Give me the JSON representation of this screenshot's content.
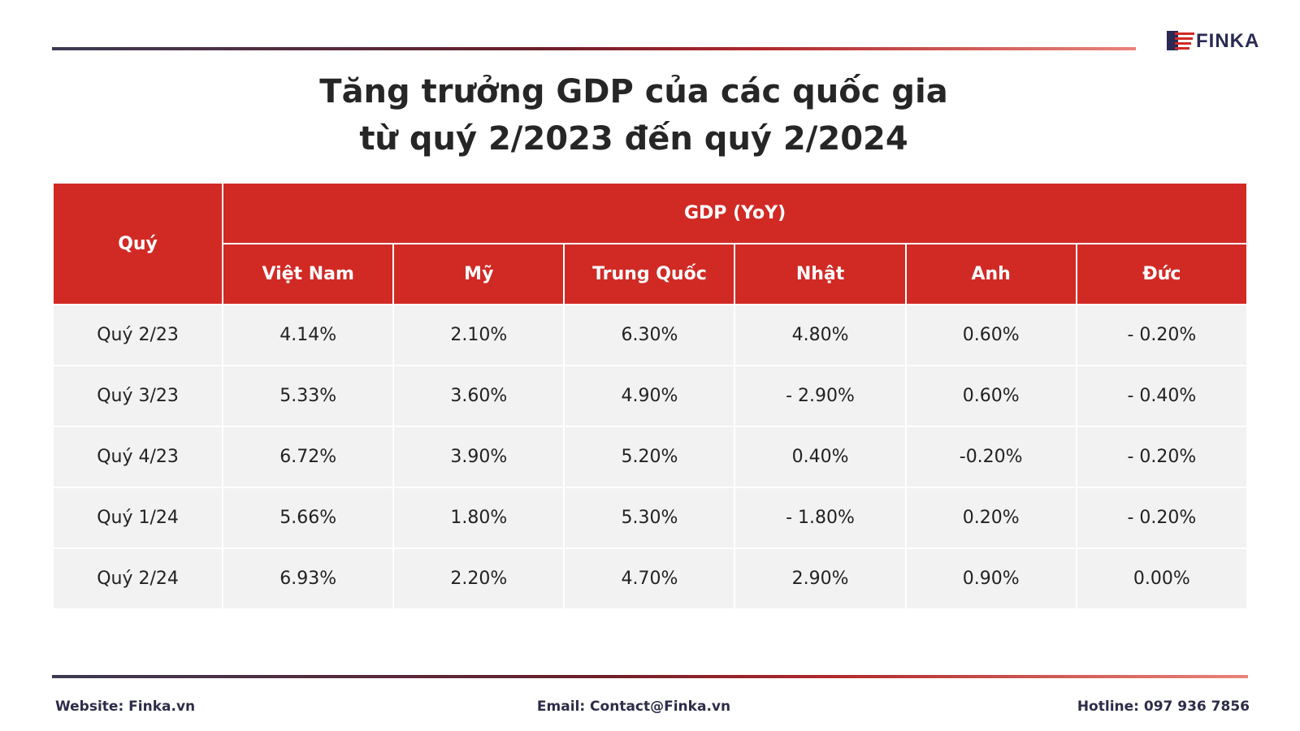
{
  "logo": {
    "text": "FINKA"
  },
  "title": {
    "line1": "Tăng trưởng GDP của các quốc gia",
    "line2": "từ quý 2/2023 đến quý 2/2024"
  },
  "table": {
    "row_header": "Quý",
    "group_header": "GDP (YoY)",
    "columns": [
      "Việt Nam",
      "Mỹ",
      "Trung Quốc",
      "Nhật",
      "Anh",
      "Đức"
    ],
    "rows": [
      {
        "label": "Quý 2/23",
        "values": [
          "4.14%",
          "2.10%",
          "6.30%",
          "4.80%",
          "0.60%",
          "- 0.20%"
        ]
      },
      {
        "label": "Quý 3/23",
        "values": [
          "5.33%",
          "3.60%",
          "4.90%",
          "- 2.90%",
          "0.60%",
          "- 0.40%"
        ]
      },
      {
        "label": "Quý 4/23",
        "values": [
          "6.72%",
          "3.90%",
          "5.20%",
          "0.40%",
          "-0.20%",
          "- 0.20%"
        ]
      },
      {
        "label": "Quý 1/24",
        "values": [
          "5.66%",
          "1.80%",
          "5.30%",
          "- 1.80%",
          "0.20%",
          "- 0.20%"
        ]
      },
      {
        "label": "Quý 2/24",
        "values": [
          "6.93%",
          "2.20%",
          "4.70%",
          "2.90%",
          "0.90%",
          "0.00%"
        ]
      }
    ]
  },
  "footer": {
    "website": "Website: Finka.vn",
    "email": "Email: Contact@Finka.vn",
    "hotline": "Hotline: 097 936 7856"
  },
  "colors": {
    "header_red": "#d12a25",
    "row_gray": "#f2f2f2",
    "navy": "#2a2a55"
  },
  "chart_data": {
    "type": "table",
    "title": "Tăng trưởng GDP của các quốc gia từ quý 2/2023 đến quý 2/2024",
    "columns": [
      "Quý",
      "Việt Nam",
      "Mỹ",
      "Trung Quốc",
      "Nhật",
      "Anh",
      "Đức"
    ],
    "rows": [
      [
        "Quý 2/23",
        4.14,
        2.1,
        6.3,
        4.8,
        0.6,
        -0.2
      ],
      [
        "Quý 3/23",
        5.33,
        3.6,
        4.9,
        -2.9,
        0.6,
        -0.4
      ],
      [
        "Quý 4/23",
        6.72,
        3.9,
        5.2,
        0.4,
        -0.2,
        -0.2
      ],
      [
        "Quý 1/24",
        5.66,
        1.8,
        5.3,
        -1.8,
        0.2,
        -0.2
      ],
      [
        "Quý 2/24",
        6.93,
        2.2,
        4.7,
        2.9,
        0.9,
        0.0
      ]
    ]
  }
}
